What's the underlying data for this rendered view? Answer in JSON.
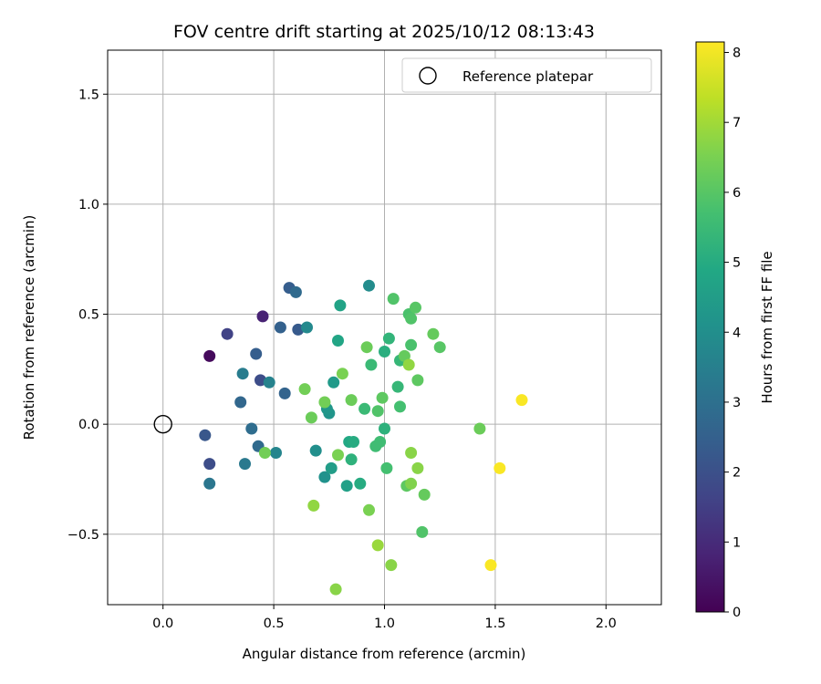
{
  "chart_data": {
    "type": "scatter",
    "title": "FOV centre drift starting at 2025/10/12 08:13:43",
    "xlabel": "Angular distance from reference (arcmin)",
    "ylabel": "Rotation from reference (arcmin)",
    "xlim": [
      -0.25,
      2.25
    ],
    "ylim": [
      -0.82,
      1.7
    ],
    "xticks": [
      0.0,
      0.5,
      1.0,
      1.5,
      2.0
    ],
    "xtick_labels": [
      "0.0",
      "0.5",
      "1.0",
      "1.5",
      "2.0"
    ],
    "yticks": [
      -0.5,
      0.0,
      0.5,
      1.0,
      1.5
    ],
    "ytick_labels": [
      "−0.5",
      "0.0",
      "0.5",
      "1.0",
      "1.5"
    ],
    "grid": true,
    "legend": {
      "position": "top-right",
      "label": "Reference platepar"
    },
    "reference_point": {
      "x": 0.0,
      "y": 0.0
    },
    "colorbar": {
      "label": "Hours from first FF file",
      "range": [
        0,
        8.15
      ],
      "ticks": [
        0,
        1,
        2,
        3,
        4,
        5,
        6,
        7,
        8
      ],
      "tick_labels": [
        "0",
        "1",
        "2",
        "3",
        "4",
        "5",
        "6",
        "7",
        "8"
      ],
      "colormap": "viridis"
    },
    "points": [
      {
        "x": 0.21,
        "y": 0.31,
        "h": 0.2
      },
      {
        "x": 0.45,
        "y": 0.49,
        "h": 0.8
      },
      {
        "x": 0.29,
        "y": 0.41,
        "h": 1.6
      },
      {
        "x": 0.44,
        "y": 0.2,
        "h": 1.9
      },
      {
        "x": 0.21,
        "y": -0.18,
        "h": 1.9
      },
      {
        "x": 0.19,
        "y": -0.05,
        "h": 2.2
      },
      {
        "x": 0.42,
        "y": 0.32,
        "h": 2.4
      },
      {
        "x": 0.57,
        "y": 0.62,
        "h": 2.4
      },
      {
        "x": 0.61,
        "y": 0.43,
        "h": 2.3
      },
      {
        "x": 0.53,
        "y": 0.44,
        "h": 2.5
      },
      {
        "x": 0.55,
        "y": 0.14,
        "h": 2.6
      },
      {
        "x": 0.6,
        "y": 0.6,
        "h": 2.8
      },
      {
        "x": 0.35,
        "y": 0.1,
        "h": 2.7
      },
      {
        "x": 0.43,
        "y": -0.1,
        "h": 2.8
      },
      {
        "x": 0.4,
        "y": -0.02,
        "h": 2.9
      },
      {
        "x": 0.21,
        "y": -0.27,
        "h": 3.2
      },
      {
        "x": 0.37,
        "y": -0.18,
        "h": 3.3
      },
      {
        "x": 0.36,
        "y": 0.23,
        "h": 3.4
      },
      {
        "x": 0.48,
        "y": 0.19,
        "h": 3.6
      },
      {
        "x": 0.51,
        "y": -0.13,
        "h": 3.7
      },
      {
        "x": 0.65,
        "y": 0.44,
        "h": 3.8
      },
      {
        "x": 0.93,
        "y": 0.63,
        "h": 3.9
      },
      {
        "x": 0.69,
        "y": -0.12,
        "h": 4.0
      },
      {
        "x": 0.73,
        "y": -0.24,
        "h": 4.1
      },
      {
        "x": 0.75,
        "y": 0.05,
        "h": 4.2
      },
      {
        "x": 0.74,
        "y": 0.07,
        "h": 4.3
      },
      {
        "x": 0.77,
        "y": 0.19,
        "h": 4.4
      },
      {
        "x": 0.76,
        "y": -0.2,
        "h": 4.5
      },
      {
        "x": 0.83,
        "y": -0.28,
        "h": 4.6
      },
      {
        "x": 0.8,
        "y": 0.54,
        "h": 4.7
      },
      {
        "x": 0.79,
        "y": 0.38,
        "h": 4.8
      },
      {
        "x": 0.84,
        "y": -0.08,
        "h": 4.9
      },
      {
        "x": 0.86,
        "y": -0.08,
        "h": 5.0
      },
      {
        "x": 0.89,
        "y": -0.27,
        "h": 5.0
      },
      {
        "x": 0.85,
        "y": -0.16,
        "h": 5.2
      },
      {
        "x": 1.0,
        "y": 0.33,
        "h": 5.1
      },
      {
        "x": 1.0,
        "y": -0.02,
        "h": 5.2
      },
      {
        "x": 1.02,
        "y": 0.39,
        "h": 5.3
      },
      {
        "x": 1.06,
        "y": 0.17,
        "h": 5.4
      },
      {
        "x": 1.07,
        "y": 0.29,
        "h": 5.4
      },
      {
        "x": 0.94,
        "y": 0.27,
        "h": 5.5
      },
      {
        "x": 0.91,
        "y": 0.07,
        "h": 5.5
      },
      {
        "x": 0.96,
        "y": -0.1,
        "h": 5.6
      },
      {
        "x": 0.98,
        "y": -0.08,
        "h": 5.6
      },
      {
        "x": 1.01,
        "y": -0.2,
        "h": 5.7
      },
      {
        "x": 1.07,
        "y": 0.08,
        "h": 5.7
      },
      {
        "x": 1.11,
        "y": 0.5,
        "h": 5.8
      },
      {
        "x": 1.12,
        "y": 0.36,
        "h": 5.8
      },
      {
        "x": 1.12,
        "y": 0.48,
        "h": 5.9
      },
      {
        "x": 1.04,
        "y": 0.57,
        "h": 5.9
      },
      {
        "x": 0.97,
        "y": 0.06,
        "h": 5.9
      },
      {
        "x": 1.14,
        "y": 0.53,
        "h": 6.0
      },
      {
        "x": 1.25,
        "y": 0.35,
        "h": 6.0
      },
      {
        "x": 1.17,
        "y": -0.49,
        "h": 5.9
      },
      {
        "x": 0.99,
        "y": 0.12,
        "h": 6.1
      },
      {
        "x": 1.1,
        "y": -0.28,
        "h": 6.1
      },
      {
        "x": 1.15,
        "y": 0.2,
        "h": 6.1
      },
      {
        "x": 1.18,
        "y": -0.32,
        "h": 6.2
      },
      {
        "x": 1.09,
        "y": 0.31,
        "h": 6.2
      },
      {
        "x": 1.22,
        "y": 0.41,
        "h": 6.2
      },
      {
        "x": 0.92,
        "y": 0.35,
        "h": 6.3
      },
      {
        "x": 0.85,
        "y": 0.11,
        "h": 6.3
      },
      {
        "x": 0.67,
        "y": 0.03,
        "h": 6.3
      },
      {
        "x": 0.64,
        "y": 0.16,
        "h": 6.4
      },
      {
        "x": 0.73,
        "y": 0.1,
        "h": 6.4
      },
      {
        "x": 0.81,
        "y": 0.23,
        "h": 6.5
      },
      {
        "x": 0.79,
        "y": -0.14,
        "h": 6.5
      },
      {
        "x": 0.46,
        "y": -0.13,
        "h": 6.4
      },
      {
        "x": 0.93,
        "y": -0.39,
        "h": 6.5
      },
      {
        "x": 1.43,
        "y": -0.02,
        "h": 6.3
      },
      {
        "x": 1.12,
        "y": -0.27,
        "h": 6.6
      },
      {
        "x": 1.12,
        "y": -0.13,
        "h": 6.7
      },
      {
        "x": 1.15,
        "y": -0.2,
        "h": 6.7
      },
      {
        "x": 1.11,
        "y": 0.27,
        "h": 6.8
      },
      {
        "x": 0.68,
        "y": -0.37,
        "h": 6.8
      },
      {
        "x": 1.03,
        "y": -0.64,
        "h": 6.7
      },
      {
        "x": 0.97,
        "y": -0.55,
        "h": 6.9
      },
      {
        "x": 0.78,
        "y": -0.75,
        "h": 6.7
      },
      {
        "x": 1.48,
        "y": -0.64,
        "h": 8.1
      },
      {
        "x": 1.52,
        "y": -0.2,
        "h": 8.1
      },
      {
        "x": 1.62,
        "y": 0.11,
        "h": 8.1
      }
    ]
  }
}
